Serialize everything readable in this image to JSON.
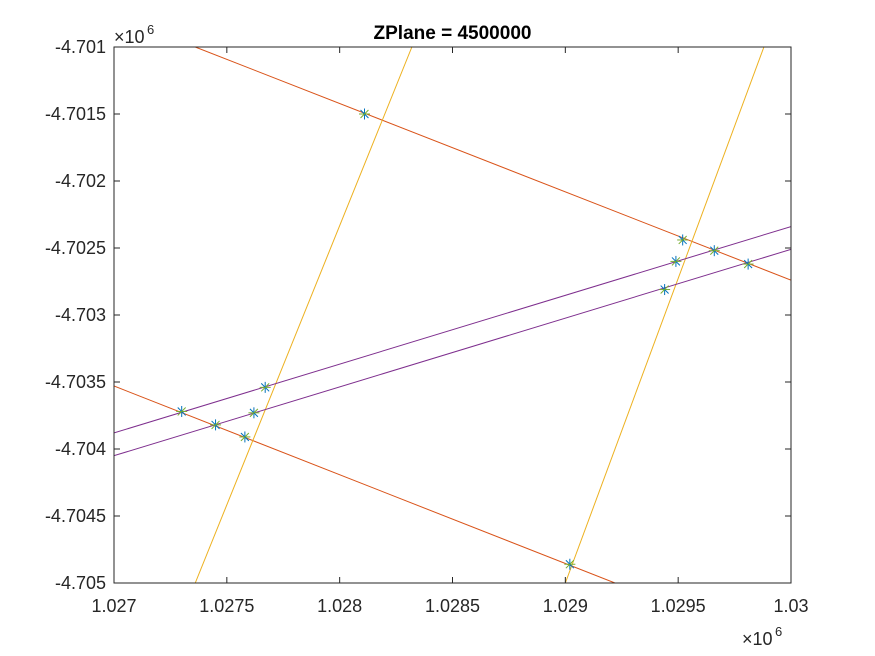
{
  "chart_data": {
    "type": "line",
    "title": "ZPlane = 4500000",
    "xlabel": "",
    "ylabel": "",
    "xlim": [
      1.027,
      1.03
    ],
    "ylim": [
      -4.705,
      -4.701
    ],
    "x_multiplier_label": "×10",
    "x_multiplier_exp": "6",
    "y_multiplier_label": "×10",
    "y_multiplier_exp": "6",
    "x_ticks": [
      1.027,
      1.0275,
      1.028,
      1.0285,
      1.029,
      1.0295,
      1.03
    ],
    "x_tick_labels": [
      "1.027",
      "1.0275",
      "1.028",
      "1.0285",
      "1.029",
      "1.0295",
      "1.03"
    ],
    "y_ticks": [
      -4.701,
      -4.7015,
      -4.702,
      -4.7025,
      -4.703,
      -4.7035,
      -4.704,
      -4.7045,
      -4.705
    ],
    "y_tick_labels": [
      "-4.701",
      "-4.7015",
      "-4.702",
      "-4.7025",
      "-4.703",
      "-4.7035",
      "-4.704",
      "-4.7045",
      "-4.705"
    ],
    "grid": false,
    "lines": [
      {
        "color": "#D95319",
        "x": [
          1.02736,
          1.03
        ],
        "y": [
          -4.701,
          -4.70274
        ]
      },
      {
        "color": "#D95319",
        "x": [
          1.027,
          1.02922
        ],
        "y": [
          -4.70353,
          -4.705
        ]
      },
      {
        "color": "#EDB120",
        "x": [
          1.02736,
          1.02832
        ],
        "y": [
          -4.705,
          -4.701
        ]
      },
      {
        "color": "#EDB120",
        "x": [
          1.029,
          1.02988
        ],
        "y": [
          -4.705,
          -4.701
        ]
      },
      {
        "color": "#7E2F8E",
        "x": [
          1.027,
          1.03
        ],
        "y": [
          -4.70388,
          -4.70234
        ]
      },
      {
        "color": "#7E2F8E",
        "x": [
          1.027,
          1.03
        ],
        "y": [
          -4.70405,
          -4.70251
        ]
      }
    ],
    "markers": {
      "style": "asterisk",
      "colors": [
        "#0072BD",
        "#77AC30"
      ],
      "points": [
        {
          "x": 1.02811,
          "y": -4.7015
        },
        {
          "x": 1.02952,
          "y": -4.70244
        },
        {
          "x": 1.02966,
          "y": -4.70252
        },
        {
          "x": 1.02949,
          "y": -4.7026
        },
        {
          "x": 1.02981,
          "y": -4.70262
        },
        {
          "x": 1.02944,
          "y": -4.70281
        },
        {
          "x": 1.02767,
          "y": -4.70354
        },
        {
          "x": 1.0273,
          "y": -4.70372
        },
        {
          "x": 1.02762,
          "y": -4.70373
        },
        {
          "x": 1.02745,
          "y": -4.70382
        },
        {
          "x": 1.02758,
          "y": -4.70391
        },
        {
          "x": 1.02902,
          "y": -4.70486
        }
      ]
    }
  }
}
